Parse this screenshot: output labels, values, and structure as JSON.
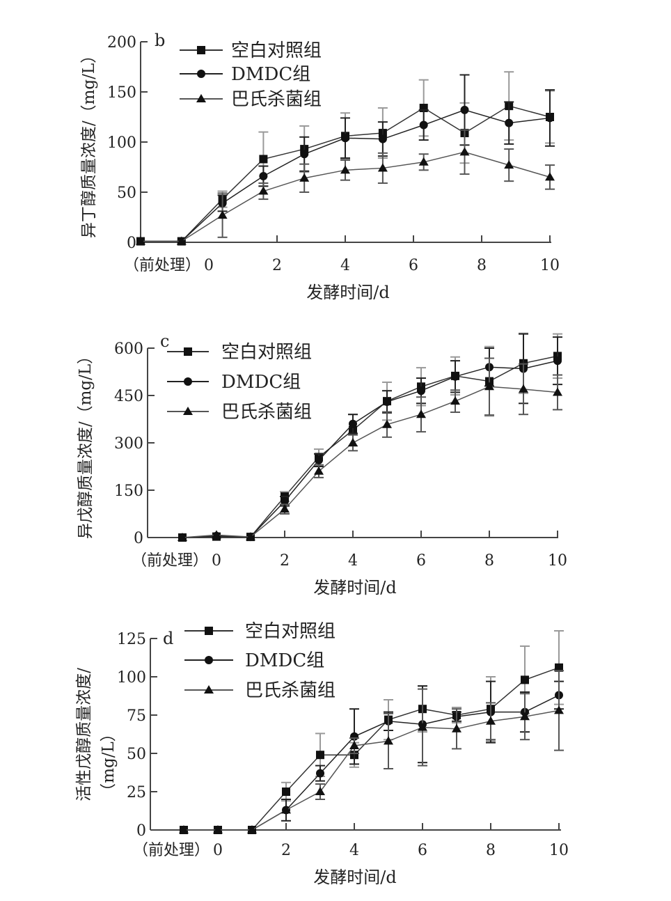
{
  "chart_data": [
    {
      "type": "line",
      "panel": "b",
      "xlabel": "发酵时间/d",
      "ylabel": "异丁醇质量浓度/（mg/L）",
      "pre_label": "（前处理）",
      "x_ticks": [
        "0",
        "2",
        "4",
        "6",
        "8",
        "10"
      ],
      "y_ticks": [
        "0",
        "50",
        "100",
        "150",
        "200"
      ],
      "ylim": [
        0,
        200
      ],
      "x": [
        -2,
        -0.8,
        0.4,
        1.6,
        2.8,
        4.0,
        5.1,
        6.3,
        7.5,
        8.8,
        10
      ],
      "series": [
        {
          "name": "空白对照组",
          "marker": "square",
          "values": [
            1,
            1,
            43,
            83,
            93,
            106,
            109,
            134,
            109,
            136,
            125
          ],
          "err": [
            0,
            0,
            8,
            27,
            23,
            23,
            25,
            28,
            30,
            34,
            26
          ]
        },
        {
          "name": "DMDC组",
          "marker": "circle",
          "values": [
            1,
            1,
            39,
            66,
            88,
            104,
            103,
            117,
            132,
            119,
            124
          ],
          "err": [
            0,
            0,
            8,
            10,
            17,
            20,
            17,
            15,
            35,
            21,
            28
          ]
        },
        {
          "name": "巴氏杀菌组",
          "marker": "triangle",
          "values": [
            1,
            1,
            27,
            51,
            64,
            72,
            74,
            80,
            90,
            77,
            65
          ],
          "err": [
            0,
            0,
            22,
            8,
            14,
            10,
            15,
            8,
            22,
            16,
            12
          ]
        }
      ]
    },
    {
      "type": "line",
      "panel": "c",
      "xlabel": "发酵时间/d",
      "ylabel": "异戊醇质量浓度/（mg/L）",
      "pre_label": "（前处理）",
      "x_ticks": [
        "0",
        "2",
        "4",
        "6",
        "8",
        "10"
      ],
      "y_ticks": [
        "0",
        "150",
        "300",
        "450",
        "600"
      ],
      "ylim": [
        0,
        600
      ],
      "x": [
        -1,
        0,
        1,
        2,
        3,
        4,
        5,
        6,
        7,
        8,
        9,
        10
      ],
      "series": [
        {
          "name": "空白对照组",
          "marker": "square",
          "values": [
            0,
            3,
            2,
            130,
            255,
            340,
            432,
            478,
            512,
            495,
            552,
            575
          ],
          "err": [
            0,
            0,
            0,
            15,
            25,
            50,
            60,
            60,
            60,
            110,
            95,
            70
          ]
        },
        {
          "name": "DMDC组",
          "marker": "circle",
          "values": [
            0,
            5,
            2,
            115,
            245,
            360,
            430,
            465,
            510,
            540,
            535,
            560
          ],
          "err": [
            0,
            0,
            0,
            15,
            20,
            30,
            35,
            40,
            50,
            60,
            110,
            75
          ]
        },
        {
          "name": "巴氏杀菌组",
          "marker": "triangle",
          "values": [
            0,
            8,
            2,
            90,
            210,
            300,
            358,
            390,
            432,
            478,
            470,
            460
          ],
          "err": [
            0,
            0,
            0,
            15,
            20,
            25,
            40,
            55,
            35,
            90,
            80,
            55
          ]
        }
      ]
    },
    {
      "type": "line",
      "panel": "d",
      "xlabel": "发酵时间/d",
      "ylabel": "活性戊醇质量浓度/",
      "ylabel2": "（mg/L）",
      "pre_label": "（前处理）",
      "x_ticks": [
        "0",
        "2",
        "4",
        "6",
        "8",
        "10"
      ],
      "y_ticks": [
        "0",
        "25",
        "50",
        "75",
        "100",
        "125"
      ],
      "ylim": [
        0,
        125
      ],
      "x": [
        -1,
        0,
        1,
        2,
        3,
        4,
        5,
        6,
        7,
        8,
        9,
        10
      ],
      "series": [
        {
          "name": "空白对照组",
          "marker": "square",
          "values": [
            0,
            0,
            0,
            25,
            49,
            49,
            72,
            79,
            75,
            79,
            98,
            106
          ],
          "err": [
            0,
            0,
            0,
            6,
            14,
            8,
            13,
            15,
            5,
            21,
            22,
            24
          ]
        },
        {
          "name": "DMDC组",
          "marker": "circle",
          "values": [
            0,
            0,
            0,
            13,
            37,
            61,
            71,
            69,
            74,
            77,
            77,
            88
          ],
          "err": [
            0,
            0,
            0,
            7,
            5,
            18,
            6,
            25,
            3,
            20,
            13,
            9
          ]
        },
        {
          "name": "巴氏杀菌组",
          "marker": "triangle",
          "values": [
            0,
            0,
            0,
            13,
            25,
            55,
            58,
            67,
            66,
            71,
            74,
            78
          ],
          "err": [
            0,
            0,
            0,
            0,
            5,
            5,
            18,
            25,
            13,
            12,
            15,
            26
          ]
        }
      ]
    }
  ]
}
